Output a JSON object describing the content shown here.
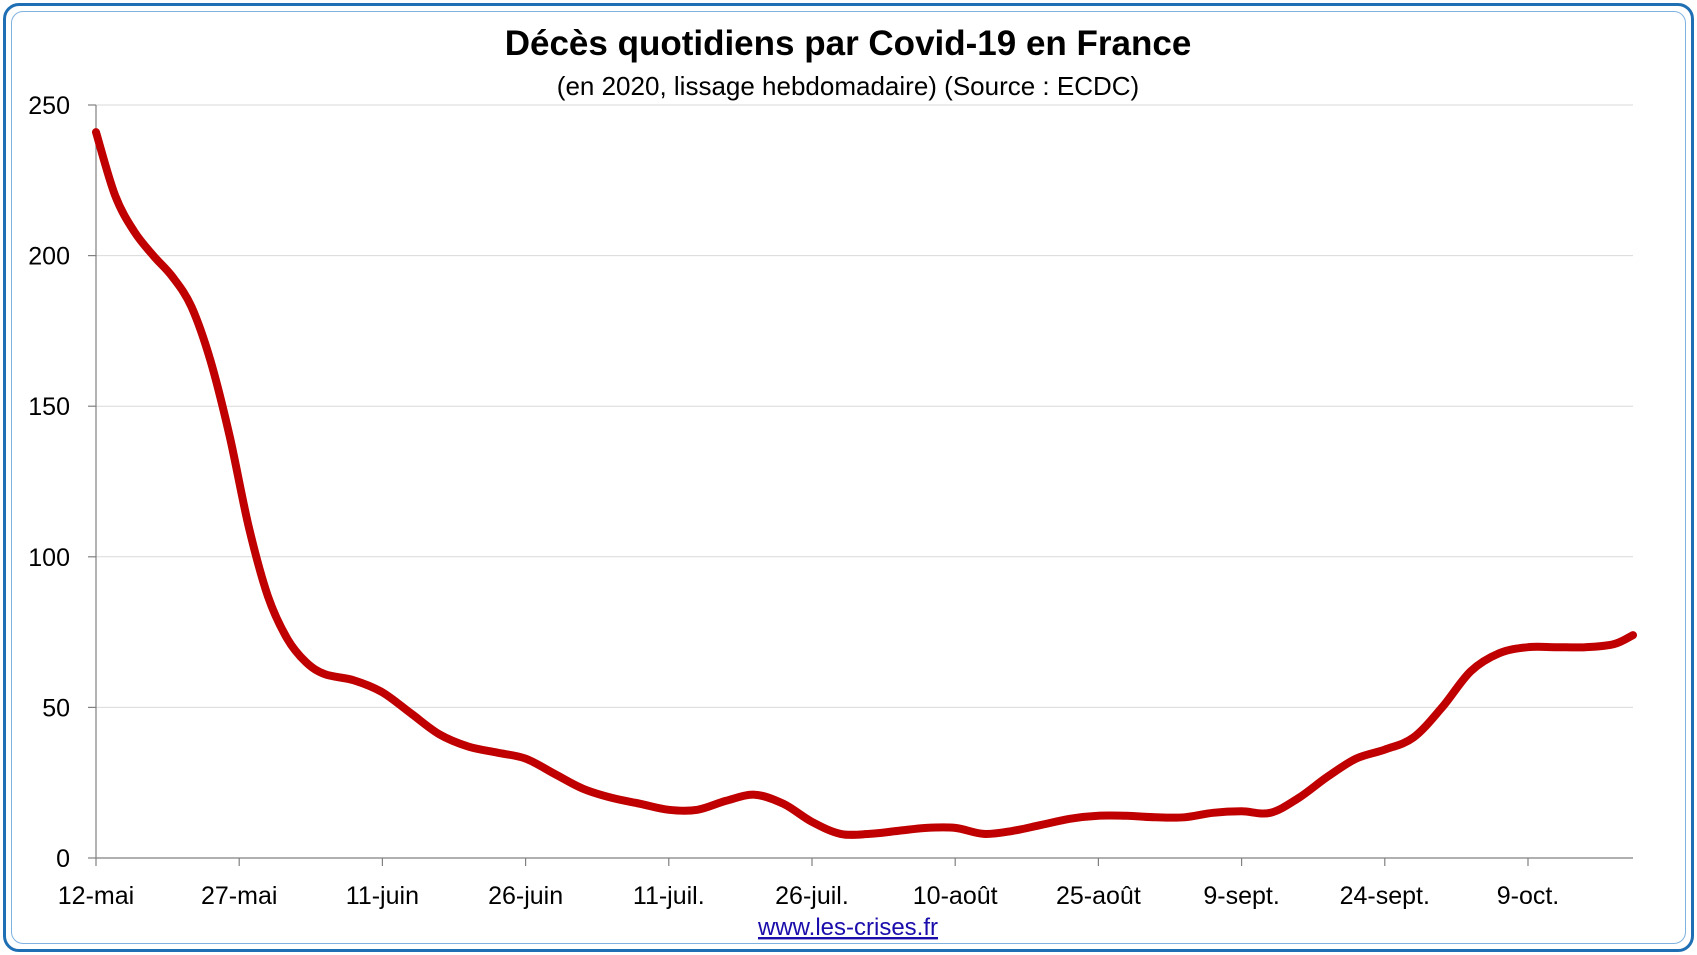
{
  "chart_data": {
    "type": "line",
    "title": "Décès quotidiens par Covid-19 en France",
    "subtitle": "(en 2020, lissage hebdomadaire) (Source : ECDC)",
    "footer": "www.les-crises.fr",
    "xlabel": "",
    "ylabel": "",
    "ylim": [
      0,
      250
    ],
    "yticks": [
      "0",
      "50",
      "100",
      "150",
      "200",
      "250"
    ],
    "xticks": [
      "12-mai",
      "27-mai",
      "11-juin",
      "26-juin",
      "11-juil.",
      "26-juil.",
      "10-août",
      "25-août",
      "9-sept.",
      "24-sept.",
      "9-oct."
    ],
    "x_start": "2020-05-12",
    "x_end": "2020-10-20",
    "grid": true,
    "line_color": "#c00000",
    "series": [
      {
        "name": "",
        "x": [
          "2020-05-12",
          "2020-05-14",
          "2020-05-16",
          "2020-05-18",
          "2020-05-20",
          "2020-05-22",
          "2020-05-24",
          "2020-05-26",
          "2020-05-28",
          "2020-05-30",
          "2020-06-01",
          "2020-06-03",
          "2020-06-05",
          "2020-06-08",
          "2020-06-11",
          "2020-06-14",
          "2020-06-17",
          "2020-06-20",
          "2020-06-23",
          "2020-06-26",
          "2020-06-29",
          "2020-07-02",
          "2020-07-05",
          "2020-07-08",
          "2020-07-11",
          "2020-07-14",
          "2020-07-17",
          "2020-07-20",
          "2020-07-23",
          "2020-07-26",
          "2020-07-29",
          "2020-08-01",
          "2020-08-04",
          "2020-08-07",
          "2020-08-10",
          "2020-08-13",
          "2020-08-16",
          "2020-08-19",
          "2020-08-22",
          "2020-08-25",
          "2020-08-28",
          "2020-08-31",
          "2020-09-03",
          "2020-09-06",
          "2020-09-09",
          "2020-09-12",
          "2020-09-15",
          "2020-09-18",
          "2020-09-21",
          "2020-09-24",
          "2020-09-27",
          "2020-09-30",
          "2020-10-03",
          "2020-10-06",
          "2020-10-09",
          "2020-10-12",
          "2020-10-15",
          "2020-10-18",
          "2020-10-20"
        ],
        "y": [
          241,
          220,
          208,
          200,
          193,
          183,
          165,
          140,
          110,
          87,
          73,
          65,
          61,
          59,
          55,
          48,
          41,
          37,
          35,
          33,
          28,
          23,
          20,
          18,
          16,
          16,
          19,
          21,
          18,
          12,
          8,
          8,
          9,
          10,
          10,
          8,
          9,
          11,
          13,
          14,
          14,
          13.5,
          13.5,
          15,
          15.5,
          15,
          20,
          27,
          33,
          36,
          40,
          50,
          62,
          68,
          70,
          70,
          70,
          71,
          74
        ]
      }
    ]
  }
}
